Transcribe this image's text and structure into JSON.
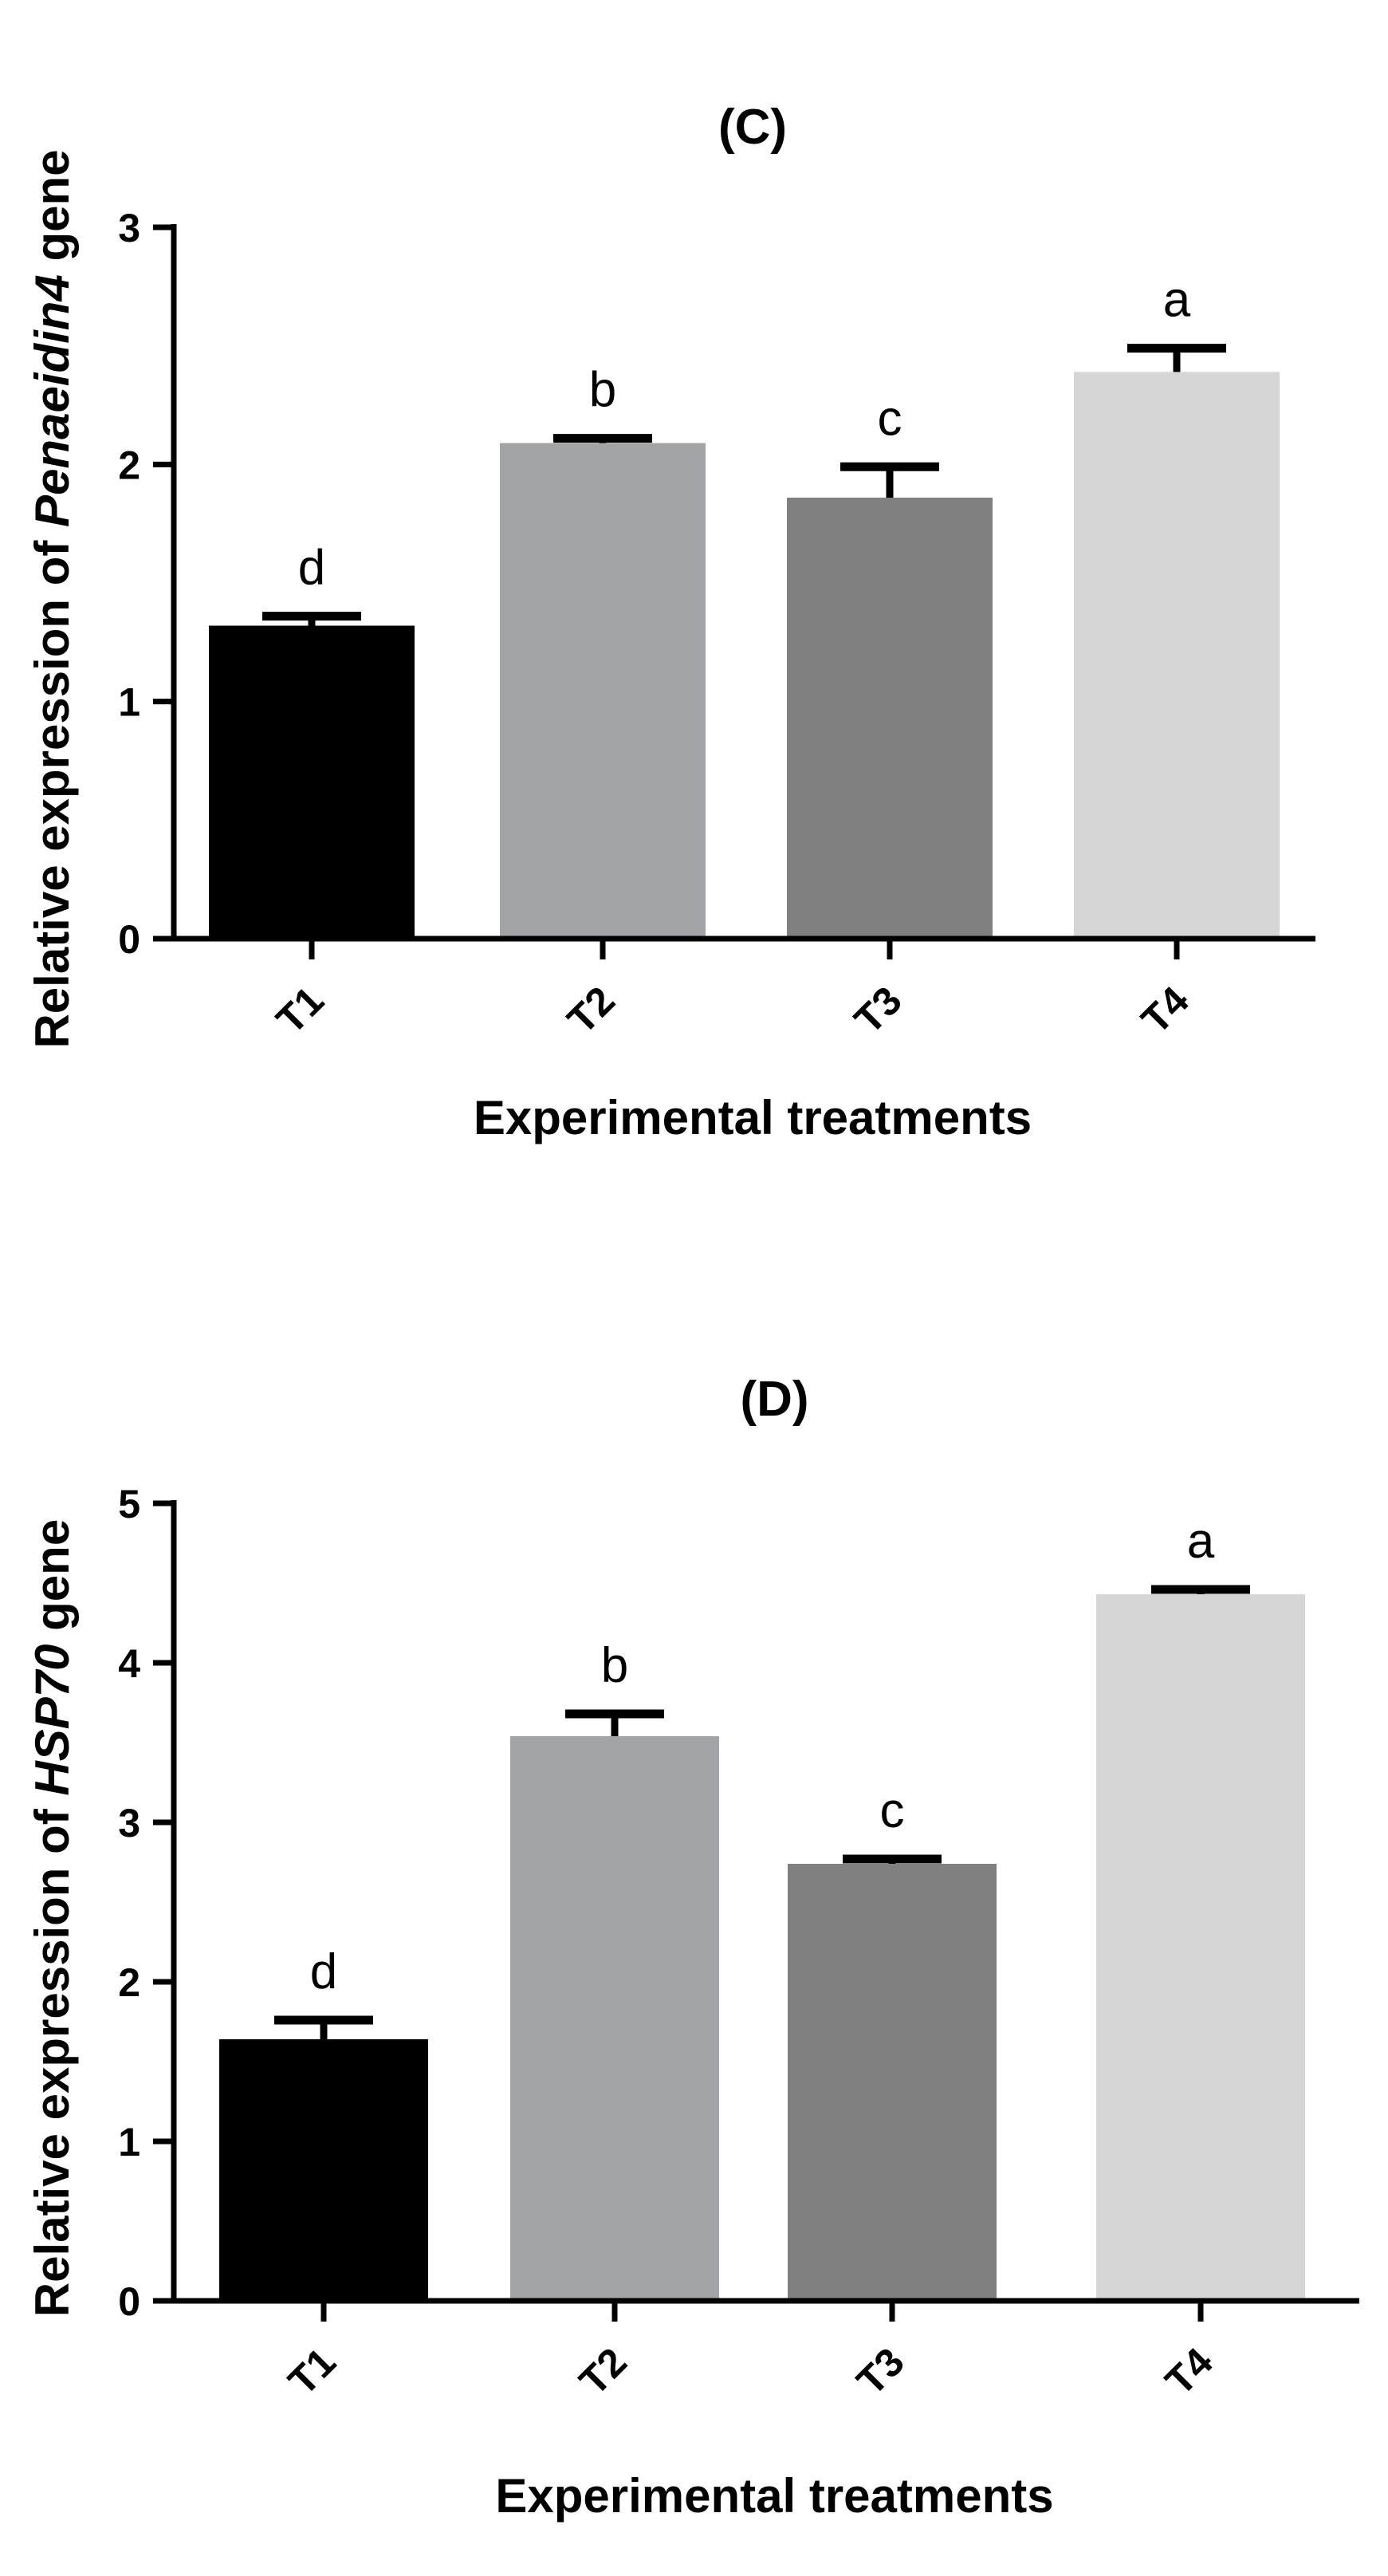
{
  "chart_data": [
    {
      "type": "bar",
      "title": "(C)",
      "ylabel_prefix": "Relative expression of ",
      "ylabel_gene": "Penaeidin4",
      "ylabel_suffix": " gene",
      "xlabel": "Experimental treatments",
      "categories": [
        "T1",
        "T2",
        "T3",
        "T4"
      ],
      "values": [
        1.32,
        2.09,
        1.86,
        2.39
      ],
      "errors": [
        0.04,
        0.02,
        0.13,
        0.1
      ],
      "significance": [
        "d",
        "b",
        "c",
        "a"
      ],
      "colors": [
        "#000000",
        "#a3a4a8",
        "#808080",
        "#d6d6d6"
      ],
      "ylim": [
        0,
        3
      ],
      "yticks": [
        0,
        1,
        2,
        3
      ],
      "ytick_labels": [
        "0",
        "1",
        "2",
        "3"
      ]
    },
    {
      "type": "bar",
      "title": "(D)",
      "ylabel_prefix": "Relative expression of ",
      "ylabel_gene": "HSP70",
      "ylabel_suffix": " gene",
      "xlabel": "Experimental treatments",
      "categories": [
        "T1",
        "T2",
        "T3",
        "T4"
      ],
      "values": [
        1.64,
        3.54,
        2.74,
        4.43
      ],
      "errors": [
        0.12,
        0.14,
        0.03,
        0.03
      ],
      "significance": [
        "d",
        "b",
        "c",
        "a"
      ],
      "colors": [
        "#000000",
        "#a3a4a8",
        "#808080",
        "#d6d6d6"
      ],
      "ylim": [
        0,
        5
      ],
      "yticks": [
        0,
        1,
        2,
        3,
        4,
        5
      ],
      "ytick_labels": [
        "0",
        "1",
        "2",
        "3",
        "4",
        "5"
      ]
    }
  ]
}
